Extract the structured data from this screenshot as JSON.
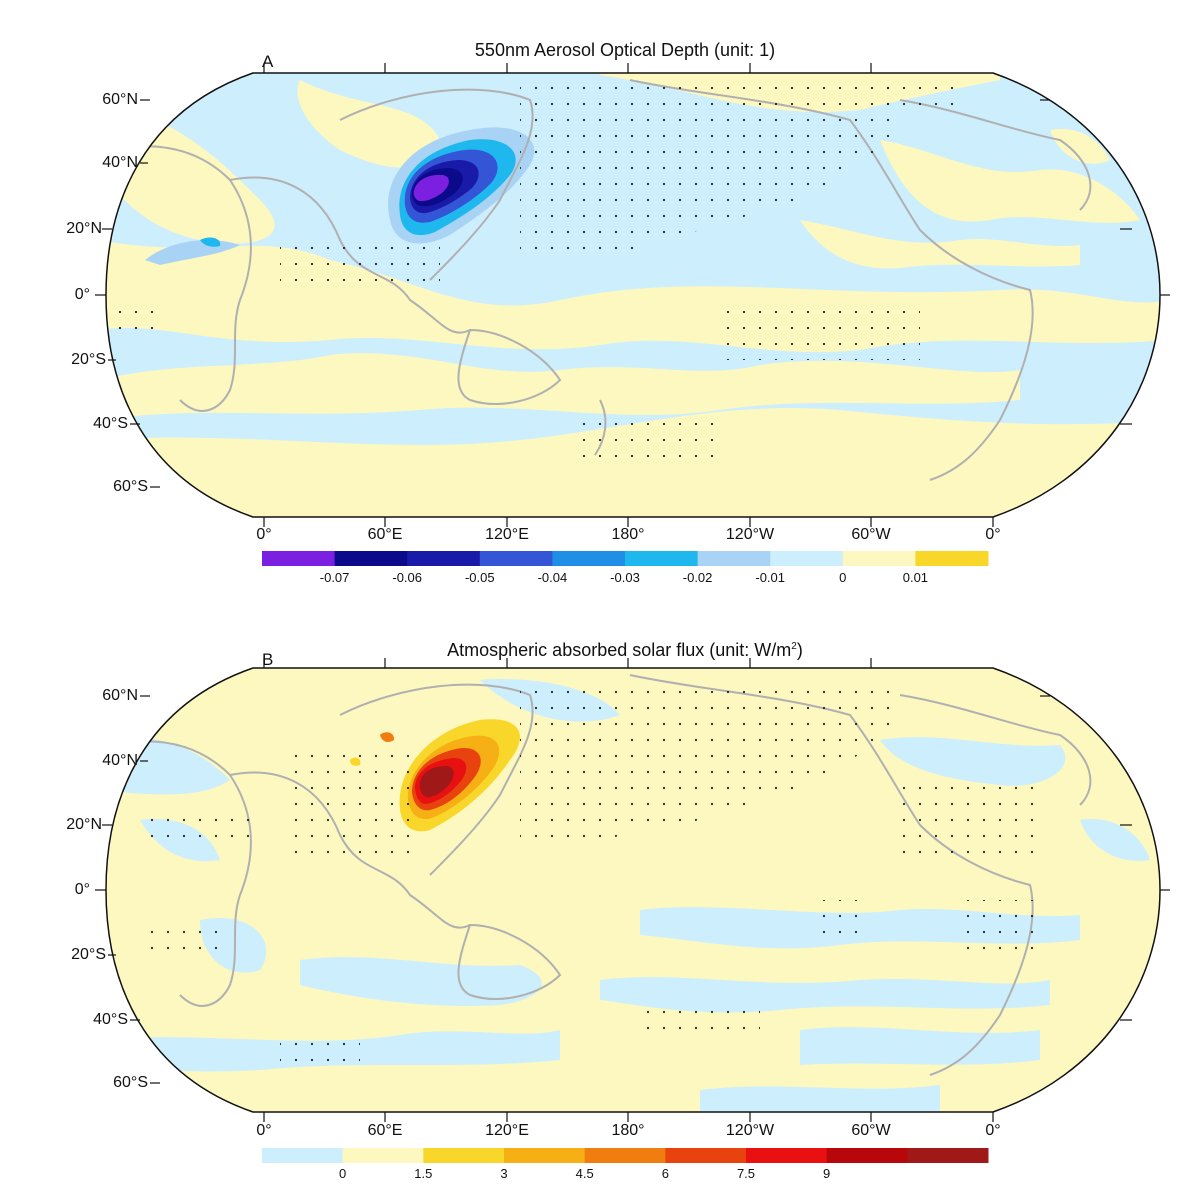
{
  "panels": [
    {
      "id": "A",
      "letter": "A",
      "title": "550nm Aerosol Optical Depth (unit: 1)",
      "lat_labels": [
        "60°N",
        "40°N",
        "20°N",
        "0°",
        "20°S",
        "40°S",
        "60°S"
      ],
      "lon_labels": [
        "0°",
        "60°E",
        "120°E",
        "180°",
        "120°W",
        "60°W",
        "0°"
      ],
      "colorbar": {
        "colors": [
          "#7b1fe0",
          "#0a0a8a",
          "#1a1aa8",
          "#3355d6",
          "#1f8fe6",
          "#1fb8ee",
          "#a9d3f5",
          "#cdeefc",
          "#fdf8c0",
          "#f9d72a"
        ],
        "labels": [
          "-0.07",
          "-0.06",
          "-0.05",
          "-0.04",
          "-0.03",
          "-0.02",
          "-0.01",
          "0",
          "0.01"
        ]
      }
    },
    {
      "id": "B",
      "letter": "B",
      "title": "Atmospheric absorbed solar flux (unit: W/m",
      "title_sup": "2",
      "title_end": ")",
      "lat_labels": [
        "60°N",
        "40°N",
        "20°N",
        "0°",
        "20°S",
        "40°S",
        "60°S"
      ],
      "lon_labels": [
        "0°",
        "60°E",
        "120°E",
        "180°",
        "120°W",
        "60°W",
        "0°"
      ],
      "colorbar": {
        "colors": [
          "#cdeefc",
          "#fdf8c0",
          "#f9d72a",
          "#f6b015",
          "#f07d10",
          "#e8430e",
          "#e81010",
          "#b8070a",
          "#a01818"
        ],
        "labels": [
          "0",
          "1.5",
          "3",
          "4.5",
          "6",
          "7.5",
          "9"
        ]
      }
    }
  ],
  "colors": {
    "ocean_blue": "#cdeefc",
    "pale_yellow": "#fdf8c0",
    "coast_gray": "#b0b0b0"
  }
}
